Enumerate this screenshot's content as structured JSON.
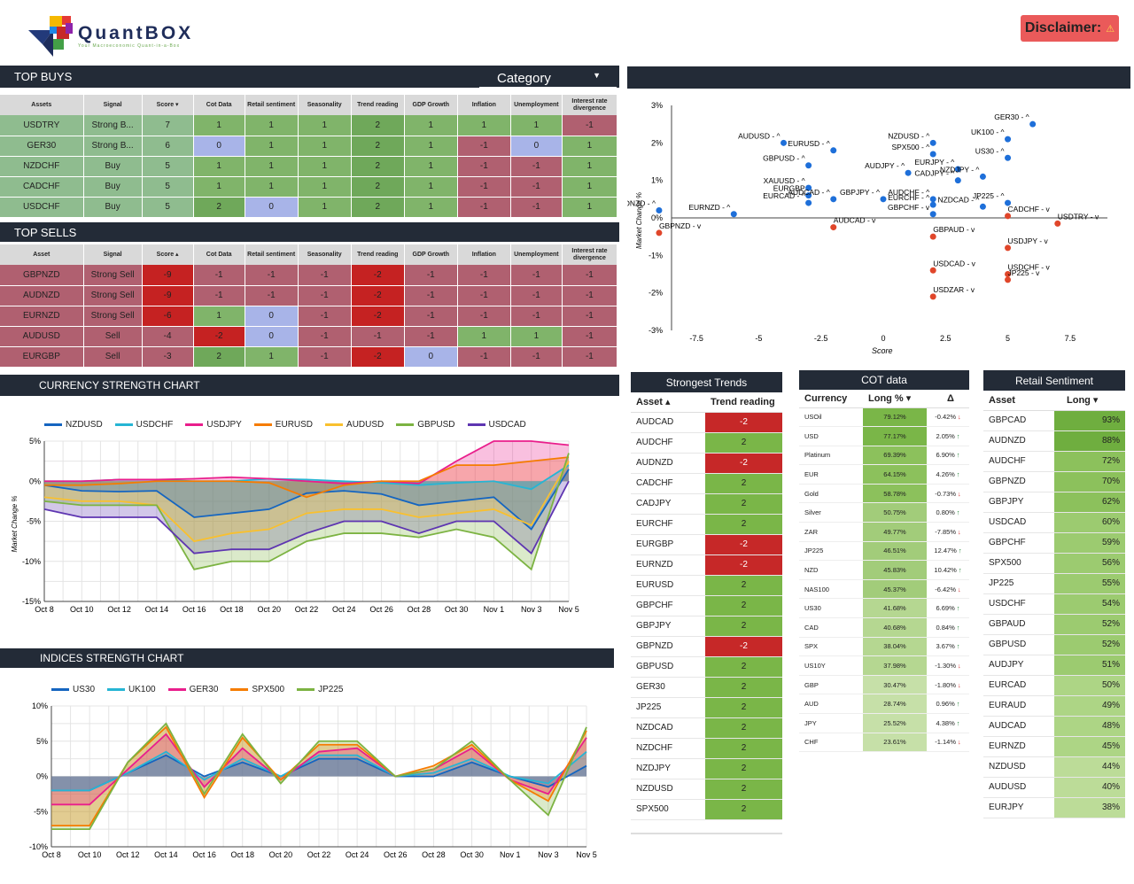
{
  "brand": {
    "name": "QuantBOX",
    "tagline": "Your Macroeconomic Quant-in-a-Box",
    "disclaimer": "Disclaimer:",
    "warn_icon": "⚠"
  },
  "buys": {
    "title": "TOP BUYS",
    "category_label": "Category",
    "headers": [
      "Assets",
      "Signal",
      "Score ▾",
      "Cot Data",
      "Retail sentiment",
      "Seasonality",
      "Trend reading",
      "GDP Growth",
      "Inflation",
      "Unemployment",
      "Interest rate divergence"
    ],
    "rows": [
      [
        "USDTRY",
        "Strong B...",
        "7",
        "1",
        "1",
        "1",
        "2",
        "1",
        "1",
        "1",
        "-1"
      ],
      [
        "GER30",
        "Strong B...",
        "6",
        "0",
        "1",
        "1",
        "2",
        "1",
        "-1",
        "0",
        "1"
      ],
      [
        "NZDCHF",
        "Buy",
        "5",
        "1",
        "1",
        "1",
        "2",
        "1",
        "-1",
        "-1",
        "1"
      ],
      [
        "CADCHF",
        "Buy",
        "5",
        "1",
        "1",
        "1",
        "2",
        "1",
        "-1",
        "-1",
        "1"
      ],
      [
        "USDCHF",
        "Buy",
        "5",
        "2",
        "0",
        "1",
        "2",
        "1",
        "-1",
        "-1",
        "1"
      ]
    ]
  },
  "sells": {
    "title": "TOP SELLS",
    "headers": [
      "Asset",
      "Signal",
      "Score ▴",
      "Cot Data",
      "Retail sentiment",
      "Seasonality",
      "Trend reading",
      "GDP Growth",
      "Inflation",
      "Unemployment",
      "Interest rate divergence"
    ],
    "rows": [
      [
        "GBPNZD",
        "Strong Sell",
        "-9",
        "-1",
        "-1",
        "-1",
        "-2",
        "-1",
        "-1",
        "-1",
        "-1"
      ],
      [
        "AUDNZD",
        "Strong Sell",
        "-9",
        "-1",
        "-1",
        "-1",
        "-2",
        "-1",
        "-1",
        "-1",
        "-1"
      ],
      [
        "EURNZD",
        "Strong Sell",
        "-6",
        "1",
        "0",
        "-1",
        "-2",
        "-1",
        "-1",
        "-1",
        "-1"
      ],
      [
        "AUDUSD",
        "Sell",
        "-4",
        "-2",
        "0",
        "-1",
        "-1",
        "-1",
        "1",
        "1",
        "-1"
      ],
      [
        "EURGBP",
        "Sell",
        "-3",
        "2",
        "1",
        "-1",
        "-2",
        "0",
        "-1",
        "-1",
        "-1"
      ]
    ]
  },
  "scatter": {
    "ylabel": "Market Change %",
    "xlabel": "Score",
    "xticks": [
      "-7.5",
      "-5",
      "-2.5",
      "0",
      "2.5",
      "5",
      "7.5"
    ],
    "yticks": [
      "3%",
      "2%",
      "1%",
      "0%",
      "-1%",
      "-2%",
      "-3%"
    ]
  },
  "currency_chart": {
    "title": "CURRENCY STRENGTH CHART",
    "ylabel": "Market Change %"
  },
  "indices_chart": {
    "title": "INDICES STRENGTH CHART"
  },
  "chart_data": [
    {
      "type": "scatter",
      "title": "",
      "xlabel": "Score",
      "ylabel": "Market Change %",
      "xlim": [
        -8.5,
        9
      ],
      "ylim": [
        -3,
        3
      ],
      "points": [
        {
          "label": "GER30 - ^",
          "x": 6,
          "y": 2.5,
          "c": "b"
        },
        {
          "label": "UK100 - ^",
          "x": 5,
          "y": 2.1,
          "c": "b"
        },
        {
          "label": "AUDUSD - ^",
          "x": -4,
          "y": 2.0,
          "c": "b"
        },
        {
          "label": "EURUSD - ^",
          "x": -2,
          "y": 1.8,
          "c": "b"
        },
        {
          "label": "NZDUSD - ^",
          "x": 2,
          "y": 2.0,
          "c": "b"
        },
        {
          "label": "SPX500 - ^",
          "x": 2,
          "y": 1.7,
          "c": "b"
        },
        {
          "label": "GBPUSD - ^",
          "x": -3,
          "y": 1.4,
          "c": "b"
        },
        {
          "label": "AUDJPY - ^",
          "x": 1,
          "y": 1.2,
          "c": "b"
        },
        {
          "label": "US30 - ^",
          "x": 5,
          "y": 1.6,
          "c": "b"
        },
        {
          "label": "EURJPY - ^",
          "x": 3,
          "y": 1.3,
          "c": "b"
        },
        {
          "label": "NZDJPY - ^",
          "x": 4,
          "y": 1.1,
          "c": "b"
        },
        {
          "label": "CADJPY - ^",
          "x": 3,
          "y": 1.0,
          "c": "b"
        },
        {
          "label": "XAUUSD - ^",
          "x": -3,
          "y": 0.8,
          "c": "b"
        },
        {
          "label": "EURGBP",
          "x": -3,
          "y": 0.6,
          "c": "b"
        },
        {
          "label": "AUDCAD - ^",
          "x": -2,
          "y": 0.5,
          "c": "b"
        },
        {
          "label": "EURCAD - ^",
          "x": -3,
          "y": 0.4,
          "c": "b"
        },
        {
          "label": "GBPJPY - ^",
          "x": 0,
          "y": 0.5,
          "c": "b"
        },
        {
          "label": "AUDCHF - ^",
          "x": 2,
          "y": 0.5,
          "c": "b"
        },
        {
          "label": "EURCHF - ^",
          "x": 2,
          "y": 0.35,
          "c": "b"
        },
        {
          "label": "NZDCAD - ^",
          "x": 4,
          "y": 0.3,
          "c": "b"
        },
        {
          "label": "JP225 - ^",
          "x": 5,
          "y": 0.4,
          "c": "b"
        },
        {
          "label": "AUDNZD - ^",
          "x": -9,
          "y": 0.2,
          "c": "b"
        },
        {
          "label": "EURNZD - ^",
          "x": -6,
          "y": 0.1,
          "c": "b"
        },
        {
          "label": "GBPCHF - v",
          "x": 2,
          "y": 0.1,
          "c": "b"
        },
        {
          "label": "CADCHF - v",
          "x": 5,
          "y": 0.05,
          "c": "o"
        },
        {
          "label": "USDTRY - v",
          "x": 7,
          "y": -0.15,
          "c": "o"
        },
        {
          "label": "GBPNZD - v",
          "x": -9,
          "y": -0.4,
          "c": "o"
        },
        {
          "label": "AUDCAD - v",
          "x": -2,
          "y": -0.25,
          "c": "o"
        },
        {
          "label": "GBPAUD - v",
          "x": 2,
          "y": -0.5,
          "c": "o"
        },
        {
          "label": "USDJPY - v",
          "x": 5,
          "y": -0.8,
          "c": "o"
        },
        {
          "label": "USDCAD - v",
          "x": 2,
          "y": -1.4,
          "c": "o"
        },
        {
          "label": "USDCHF - v",
          "x": 5,
          "y": -1.5,
          "c": "o"
        },
        {
          "label": "JP225 - v",
          "x": 5,
          "y": -1.65,
          "c": "o"
        },
        {
          "label": "USDZAR - v",
          "x": 2,
          "y": -2.1,
          "c": "o"
        }
      ]
    },
    {
      "type": "area",
      "title": "CURRENCY STRENGTH CHART",
      "ylabel": "Market Change %",
      "ylim": [
        -15,
        5
      ],
      "categories": [
        "Oct 8",
        "Oct 10",
        "Oct 12",
        "Oct 14",
        "Oct 16",
        "Oct 18",
        "Oct 20",
        "Oct 22",
        "Oct 24",
        "Oct 26",
        "Oct 28",
        "Oct 30",
        "Nov 1",
        "Nov 3",
        "Nov 5"
      ],
      "ytick_labels": [
        "5%",
        "0%",
        "-5%",
        "-10%",
        "-15%"
      ],
      "series": [
        {
          "name": "NZDUSD",
          "color": "#1565c0",
          "values": [
            -0.5,
            -1.2,
            -1.3,
            -1.2,
            -4.5,
            -4.0,
            -3.5,
            -1.5,
            -1.2,
            -1.6,
            -3.0,
            -2.5,
            -2.0,
            -6.0,
            1.5
          ]
        },
        {
          "name": "USDCHF",
          "color": "#26b5d4",
          "values": [
            0,
            0,
            0.2,
            0.2,
            0,
            0,
            0.3,
            0.2,
            0,
            -0.2,
            -0.5,
            -0.2,
            0,
            -1.0,
            2.0
          ]
        },
        {
          "name": "USDJPY",
          "color": "#e91e8c",
          "values": [
            0,
            0,
            0.2,
            0.2,
            0.3,
            0.5,
            0.3,
            0,
            -0.3,
            0,
            -0.3,
            2.5,
            5.0,
            5.0,
            4.5
          ]
        },
        {
          "name": "EURUSD",
          "color": "#f57c00",
          "values": [
            -0.5,
            -0.5,
            -0.3,
            0,
            0,
            0,
            -0.2,
            -2.0,
            -0.5,
            0,
            0,
            2.0,
            2.0,
            2.5,
            3.0
          ]
        },
        {
          "name": "AUDUSD",
          "color": "#f9c02e",
          "values": [
            -2.0,
            -2.5,
            -2.5,
            -3.0,
            -7.5,
            -6.5,
            -6.0,
            -4.0,
            -3.5,
            -3.5,
            -4.5,
            -4.0,
            -3.5,
            -5.5,
            2.5
          ]
        },
        {
          "name": "GBPUSD",
          "color": "#7cb342",
          "values": [
            -2.5,
            -3.0,
            -3.0,
            -3.0,
            -11.0,
            -10.0,
            -10.0,
            -7.5,
            -6.5,
            -6.5,
            -7.0,
            -6.0,
            -7.0,
            -11.0,
            3.5
          ]
        },
        {
          "name": "USDCAD",
          "color": "#5e35b1",
          "values": [
            -3.5,
            -4.5,
            -4.5,
            -4.5,
            -9.0,
            -8.5,
            -8.5,
            -6.5,
            -5.0,
            -5.0,
            -6.5,
            -5.0,
            -5.0,
            -9.0,
            0
          ]
        }
      ]
    },
    {
      "type": "area",
      "title": "INDICES STRENGTH CHART",
      "ylim": [
        -10,
        10
      ],
      "categories": [
        "Oct 8",
        "Oct 10",
        "Oct 12",
        "Oct 14",
        "Oct 16",
        "Oct 18",
        "Oct 20",
        "Oct 22",
        "Oct 24",
        "Oct 26",
        "Oct 28",
        "Oct 30",
        "Nov 1",
        "Nov 3",
        "Nov 5"
      ],
      "ytick_labels": [
        "10%",
        "5%",
        "0%",
        "-5%",
        "-10%"
      ],
      "series": [
        {
          "name": "US30",
          "color": "#1565c0",
          "values": [
            -2.0,
            -2.0,
            0.5,
            3.0,
            0,
            2.0,
            0,
            2.5,
            2.5,
            0,
            0,
            2.0,
            0,
            -1.5,
            1.5
          ]
        },
        {
          "name": "UK100",
          "color": "#26b5d4",
          "values": [
            -2.0,
            -2.0,
            0.5,
            3.5,
            -0.5,
            2.5,
            0,
            3.0,
            3.0,
            0,
            0.5,
            2.5,
            0,
            -1.0,
            3.5
          ]
        },
        {
          "name": "GER30",
          "color": "#e91e8c",
          "values": [
            -4.0,
            -4.0,
            1.0,
            6.0,
            -1.5,
            4.0,
            -0.5,
            3.5,
            4.0,
            0,
            1.0,
            4.0,
            -0.5,
            -2.5,
            5.5
          ]
        },
        {
          "name": "SPX500",
          "color": "#f57c00",
          "values": [
            -7.0,
            -7.0,
            2.0,
            7.0,
            -3.0,
            5.5,
            -0.5,
            4.5,
            4.5,
            0,
            1.5,
            4.5,
            -0.5,
            -3.5,
            6.5
          ]
        },
        {
          "name": "JP225",
          "color": "#7cb342",
          "values": [
            -7.5,
            -7.5,
            2.0,
            7.5,
            -2.5,
            6.0,
            -1.0,
            5.0,
            5.0,
            0,
            1.0,
            5.0,
            -0.5,
            -5.5,
            7.0
          ]
        }
      ]
    }
  ],
  "trends": {
    "title": "Strongest Trends",
    "h_asset": "Asset ▴",
    "h_trend": "Trend reading",
    "rows": [
      [
        "AUDCAD",
        "-2"
      ],
      [
        "AUDCHF",
        "2"
      ],
      [
        "AUDNZD",
        "-2"
      ],
      [
        "CADCHF",
        "2"
      ],
      [
        "CADJPY",
        "2"
      ],
      [
        "EURCHF",
        "2"
      ],
      [
        "EURGBP",
        "-2"
      ],
      [
        "EURNZD",
        "-2"
      ],
      [
        "EURUSD",
        "2"
      ],
      [
        "GBPCHF",
        "2"
      ],
      [
        "GBPJPY",
        "2"
      ],
      [
        "GBPNZD",
        "-2"
      ],
      [
        "GBPUSD",
        "2"
      ],
      [
        "GER30",
        "2"
      ],
      [
        "JP225",
        "2"
      ],
      [
        "NZDCAD",
        "2"
      ],
      [
        "NZDCHF",
        "2"
      ],
      [
        "NZDJPY",
        "2"
      ],
      [
        "NZDUSD",
        "2"
      ],
      [
        "SPX500",
        "2"
      ]
    ]
  },
  "cot": {
    "title": "COT data",
    "h_currency": "Currency",
    "h_long": "Long % ▾",
    "h_delta": "Δ",
    "rows": [
      [
        "USOil",
        "79.12%",
        "-0.42%",
        "d"
      ],
      [
        "USD",
        "77.17%",
        "2.05%",
        "u"
      ],
      [
        "Platinum",
        "69.39%",
        "6.90%",
        "u"
      ],
      [
        "EUR",
        "64.15%",
        "4.26%",
        "u"
      ],
      [
        "Gold",
        "58.78%",
        "-0.73%",
        "d"
      ],
      [
        "Silver",
        "50.75%",
        "0.80%",
        "u"
      ],
      [
        "ZAR",
        "49.77%",
        "-7.85%",
        "d"
      ],
      [
        "JP225",
        "46.51%",
        "12.47%",
        "u"
      ],
      [
        "NZD",
        "45.83%",
        "10.42%",
        "u"
      ],
      [
        "NAS100",
        "45.37%",
        "-6.42%",
        "d"
      ],
      [
        "US30",
        "41.68%",
        "6.69%",
        "u"
      ],
      [
        "CAD",
        "40.68%",
        "0.84%",
        "u"
      ],
      [
        "SPX",
        "38.04%",
        "3.67%",
        "u"
      ],
      [
        "US10Y",
        "37.98%",
        "-1.30%",
        "d"
      ],
      [
        "GBP",
        "30.47%",
        "-1.80%",
        "d"
      ],
      [
        "AUD",
        "28.74%",
        "0.96%",
        "u"
      ],
      [
        "JPY",
        "25.52%",
        "4.38%",
        "u"
      ],
      [
        "CHF",
        "23.61%",
        "-1.14%",
        "d"
      ]
    ]
  },
  "retail": {
    "title": "Retail Sentiment",
    "h_asset": "Asset",
    "h_long": "Long ▾",
    "rows": [
      [
        "GBPCAD",
        "93%"
      ],
      [
        "AUDNZD",
        "88%"
      ],
      [
        "AUDCHF",
        "72%"
      ],
      [
        "GBPNZD",
        "70%"
      ],
      [
        "GBPJPY",
        "62%"
      ],
      [
        "USDCAD",
        "60%"
      ],
      [
        "GBPCHF",
        "59%"
      ],
      [
        "SPX500",
        "56%"
      ],
      [
        "JP225",
        "55%"
      ],
      [
        "USDCHF",
        "54%"
      ],
      [
        "GBPAUD",
        "52%"
      ],
      [
        "GBPUSD",
        "52%"
      ],
      [
        "AUDJPY",
        "51%"
      ],
      [
        "EURCAD",
        "50%"
      ],
      [
        "EURAUD",
        "49%"
      ],
      [
        "AUDCAD",
        "48%"
      ],
      [
        "EURNZD",
        "45%"
      ],
      [
        "NZDUSD",
        "44%"
      ],
      [
        "AUDUSD",
        "40%"
      ],
      [
        "EURJPY",
        "38%"
      ]
    ]
  }
}
